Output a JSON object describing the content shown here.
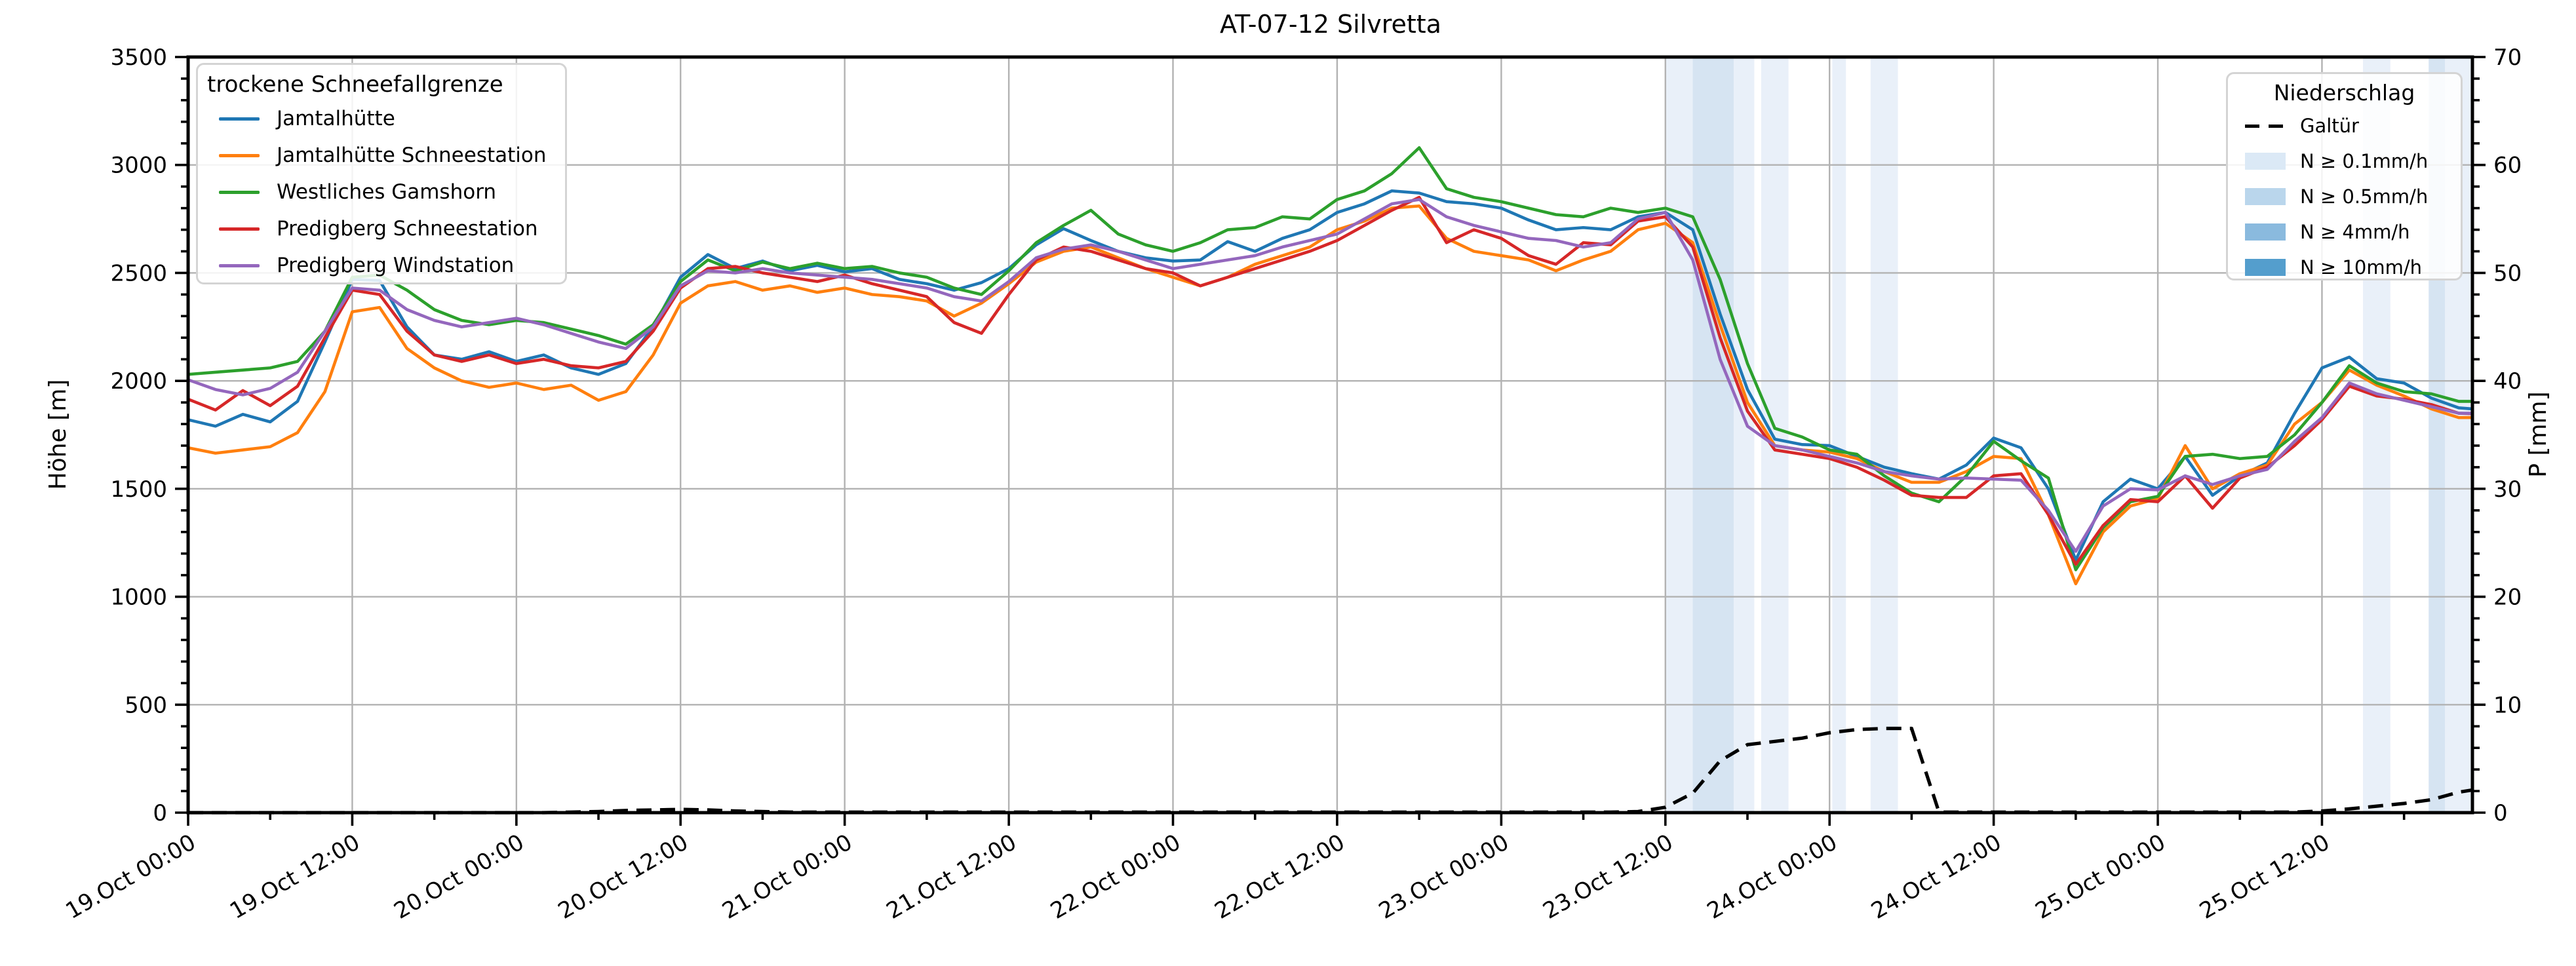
{
  "title": "AT-07-12 Silvretta",
  "axes": {
    "y_left": {
      "label": "Höhe [m]",
      "min": 0,
      "max": 3500,
      "major_step": 500,
      "minor_step": 100
    },
    "y_right": {
      "label": "P [mm]",
      "min": 0,
      "max": 70,
      "major_step": 10,
      "minor_step": 2
    },
    "x": {
      "min_hours": 0,
      "max_hours": 167,
      "major_step_hours": 12,
      "minor_step_hours": 6
    }
  },
  "legend_snowline": {
    "title": "trockene Schneefallgrenze",
    "items": [
      {
        "label": "Jamtalhütte",
        "color": "#1f77b4"
      },
      {
        "label": "Jamtalhütte Schneestation",
        "color": "#ff7f0e"
      },
      {
        "label": "Westliches Gamshorn",
        "color": "#2ca02c"
      },
      {
        "label": "Predigberg Schneestation",
        "color": "#d62728"
      },
      {
        "label": "Predigberg Windstation",
        "color": "#9467bd"
      }
    ]
  },
  "legend_precip": {
    "title": "Niederschlag",
    "line_item": {
      "label": "Galtür",
      "color": "#000000"
    },
    "band_items": [
      {
        "label": "N ≥ 0.1mm/h",
        "color": "#dbe9f6"
      },
      {
        "label": "N ≥ 0.5mm/h",
        "color": "#bad6ec"
      },
      {
        "label": "N ≥ 4mm/h",
        "color": "#8abade"
      },
      {
        "label": "N ≥ 10mm/h",
        "color": "#549ecd"
      }
    ]
  },
  "chart_data": {
    "type": "line",
    "title": "AT-07-12 Silvretta",
    "xlabel": "",
    "ylabel_left": "Höhe [m]",
    "ylabel_right": "P [mm]",
    "x_unit": "hours since 19.Oct 00:00",
    "x_tick_hours": [
      0,
      12,
      24,
      36,
      48,
      60,
      72,
      84,
      96,
      108,
      120,
      132,
      144,
      156
    ],
    "x_tick_labels": [
      "19.Oct 00:00",
      "19.Oct 12:00",
      "20.Oct 00:00",
      "20.Oct 12:00",
      "21.Oct 00:00",
      "21.Oct 12:00",
      "22.Oct 00:00",
      "22.Oct 12:00",
      "23.Oct 00:00",
      "23.Oct 12:00",
      "24.Oct 00:00",
      "24.Oct 12:00",
      "25.Oct 00:00",
      "25.Oct 12:00"
    ],
    "y_left_ticks": [
      0,
      500,
      1000,
      1500,
      2000,
      2500,
      3000,
      3500
    ],
    "y_right_ticks": [
      0,
      10,
      20,
      30,
      40,
      50,
      60,
      70
    ],
    "grid": true,
    "legend_positions": {
      "snowline": "upper left",
      "precip": "upper right"
    },
    "x": [
      0,
      2,
      4,
      6,
      8,
      10,
      12,
      14,
      16,
      18,
      20,
      22,
      24,
      26,
      28,
      30,
      32,
      34,
      36,
      38,
      40,
      42,
      44,
      46,
      48,
      50,
      52,
      54,
      56,
      58,
      60,
      62,
      64,
      66,
      68,
      70,
      72,
      74,
      76,
      78,
      80,
      82,
      84,
      86,
      88,
      90,
      92,
      94,
      96,
      98,
      100,
      102,
      104,
      106,
      108,
      110,
      112,
      114,
      116,
      118,
      120,
      122,
      124,
      126,
      128,
      130,
      132,
      134,
      136,
      138,
      140,
      142,
      144,
      146,
      148,
      150,
      152,
      154,
      156,
      158,
      160,
      162,
      164,
      166,
      167
    ],
    "series": [
      {
        "name": "Jamtalhütte",
        "color": "#1f77b4",
        "axis": "left",
        "values": [
          1820,
          1790,
          1845,
          1810,
          1905,
          2180,
          2470,
          2465,
          2250,
          2120,
          2100,
          2135,
          2090,
          2120,
          2060,
          2030,
          2080,
          2250,
          2480,
          2585,
          2520,
          2555,
          2510,
          2535,
          2505,
          2520,
          2470,
          2450,
          2420,
          2455,
          2520,
          2630,
          2705,
          2650,
          2600,
          2570,
          2555,
          2560,
          2645,
          2600,
          2660,
          2700,
          2780,
          2820,
          2880,
          2870,
          2830,
          2820,
          2800,
          2745,
          2700,
          2710,
          2700,
          2760,
          2780,
          2700,
          2310,
          1960,
          1730,
          1705,
          1700,
          1650,
          1600,
          1570,
          1545,
          1610,
          1735,
          1690,
          1500,
          1170,
          1440,
          1545,
          1500,
          1650,
          1470,
          1560,
          1620,
          1850,
          2060,
          2110,
          2010,
          1990,
          1920,
          1875,
          1870
        ]
      },
      {
        "name": "Jamtalhütte Schneestation",
        "color": "#ff7f0e",
        "axis": "left",
        "values": [
          1690,
          1665,
          1680,
          1695,
          1760,
          1950,
          2320,
          2340,
          2150,
          2060,
          2000,
          1970,
          1990,
          1960,
          1980,
          1910,
          1950,
          2120,
          2360,
          2440,
          2460,
          2420,
          2440,
          2410,
          2430,
          2400,
          2390,
          2370,
          2300,
          2360,
          2450,
          2550,
          2600,
          2620,
          2570,
          2520,
          2480,
          2440,
          2480,
          2540,
          2580,
          2620,
          2700,
          2740,
          2800,
          2810,
          2660,
          2600,
          2580,
          2560,
          2510,
          2560,
          2600,
          2700,
          2730,
          2640,
          2260,
          1900,
          1700,
          1680,
          1670,
          1640,
          1580,
          1530,
          1530,
          1580,
          1650,
          1640,
          1380,
          1060,
          1300,
          1420,
          1455,
          1700,
          1500,
          1570,
          1610,
          1800,
          1900,
          2050,
          1980,
          1930,
          1870,
          1830,
          1830
        ]
      },
      {
        "name": "Westliches Gamshorn",
        "color": "#2ca02c",
        "axis": "left",
        "values": [
          2030,
          2040,
          2050,
          2060,
          2090,
          2230,
          2480,
          2490,
          2420,
          2330,
          2280,
          2260,
          2280,
          2270,
          2240,
          2210,
          2170,
          2260,
          2460,
          2560,
          2510,
          2550,
          2520,
          2545,
          2520,
          2530,
          2500,
          2480,
          2430,
          2400,
          2510,
          2640,
          2720,
          2790,
          2680,
          2630,
          2600,
          2640,
          2700,
          2710,
          2760,
          2750,
          2840,
          2880,
          2960,
          3080,
          2890,
          2850,
          2830,
          2800,
          2770,
          2760,
          2800,
          2780,
          2800,
          2760,
          2470,
          2080,
          1780,
          1740,
          1680,
          1660,
          1560,
          1480,
          1440,
          1560,
          1720,
          1630,
          1550,
          1125,
          1320,
          1440,
          1465,
          1650,
          1660,
          1640,
          1650,
          1750,
          1900,
          2070,
          1990,
          1950,
          1940,
          1905,
          1905
        ]
      },
      {
        "name": "Predigberg Schneestation",
        "color": "#d62728",
        "axis": "left",
        "values": [
          1915,
          1865,
          1955,
          1885,
          1975,
          2200,
          2420,
          2400,
          2230,
          2120,
          2090,
          2120,
          2080,
          2100,
          2070,
          2060,
          2090,
          2230,
          2430,
          2520,
          2530,
          2500,
          2480,
          2460,
          2490,
          2450,
          2420,
          2390,
          2270,
          2220,
          2400,
          2560,
          2620,
          2600,
          2560,
          2520,
          2500,
          2440,
          2480,
          2520,
          2560,
          2600,
          2650,
          2720,
          2790,
          2850,
          2640,
          2700,
          2660,
          2580,
          2540,
          2640,
          2630,
          2740,
          2760,
          2620,
          2200,
          1860,
          1680,
          1660,
          1640,
          1600,
          1540,
          1470,
          1460,
          1460,
          1560,
          1570,
          1380,
          1150,
          1330,
          1450,
          1440,
          1560,
          1410,
          1550,
          1600,
          1700,
          1820,
          1975,
          1930,
          1915,
          1890,
          1850,
          1848
        ]
      },
      {
        "name": "Predigberg Windstation",
        "color": "#9467bd",
        "axis": "left",
        "values": [
          2005,
          1960,
          1935,
          1965,
          2040,
          2230,
          2430,
          2420,
          2330,
          2280,
          2250,
          2270,
          2290,
          2260,
          2220,
          2180,
          2150,
          2250,
          2440,
          2510,
          2500,
          2520,
          2500,
          2490,
          2480,
          2470,
          2450,
          2430,
          2390,
          2370,
          2460,
          2570,
          2610,
          2630,
          2600,
          2560,
          2520,
          2540,
          2560,
          2580,
          2620,
          2650,
          2680,
          2750,
          2820,
          2840,
          2760,
          2720,
          2690,
          2660,
          2650,
          2620,
          2640,
          2750,
          2780,
          2560,
          2100,
          1790,
          1700,
          1680,
          1650,
          1620,
          1580,
          1560,
          1545,
          1550,
          1545,
          1540,
          1400,
          1210,
          1420,
          1500,
          1495,
          1560,
          1520,
          1560,
          1590,
          1720,
          1830,
          1990,
          1940,
          1910,
          1880,
          1850,
          1850
        ]
      }
    ],
    "precip_line": {
      "name": "Galtür",
      "color": "#000000",
      "axis": "right",
      "style": "dashed",
      "values": [
        0,
        0,
        0,
        0,
        0,
        0,
        0,
        0,
        0,
        0,
        0,
        0,
        0,
        0,
        0.05,
        0.1,
        0.2,
        0.25,
        0.3,
        0.25,
        0.15,
        0.1,
        0.05,
        0.05,
        0.05,
        0.05,
        0.05,
        0.05,
        0.05,
        0.05,
        0.05,
        0.05,
        0.05,
        0.05,
        0.05,
        0.05,
        0.05,
        0.05,
        0.05,
        0.05,
        0.05,
        0.05,
        0.05,
        0.05,
        0.05,
        0.05,
        0.05,
        0.05,
        0.05,
        0.05,
        0.05,
        0.05,
        0.05,
        0.1,
        0.5,
        1.8,
        4.8,
        6.3,
        6.6,
        6.9,
        7.4,
        7.7,
        7.8,
        7.8,
        0.05,
        0.05,
        0.05,
        0.05,
        0.05,
        0.05,
        0.05,
        0.05,
        0.05,
        0.05,
        0.05,
        0.05,
        0.05,
        0.05,
        0.15,
        0.35,
        0.6,
        0.85,
        1.2,
        1.9,
        2.1
      ]
    },
    "precip_bands": [
      {
        "start_h": 108,
        "end_h": 110,
        "level": "0.1"
      },
      {
        "start_h": 110,
        "end_h": 113,
        "level": "0.5"
      },
      {
        "start_h": 113,
        "end_h": 114.5,
        "level": "0.1"
      },
      {
        "start_h": 115,
        "end_h": 117,
        "level": "0.1"
      },
      {
        "start_h": 120.2,
        "end_h": 121.2,
        "level": "0.1"
      },
      {
        "start_h": 123,
        "end_h": 125,
        "level": "0.1"
      },
      {
        "start_h": 159,
        "end_h": 161,
        "level": "0.1"
      },
      {
        "start_h": 163.8,
        "end_h": 165,
        "level": "0.5"
      },
      {
        "start_h": 165,
        "end_h": 167,
        "level": "0.1"
      }
    ],
    "band_fill_colors": {
      "0.1": "#e9f0f9",
      "0.5": "#d6e4f2"
    }
  }
}
